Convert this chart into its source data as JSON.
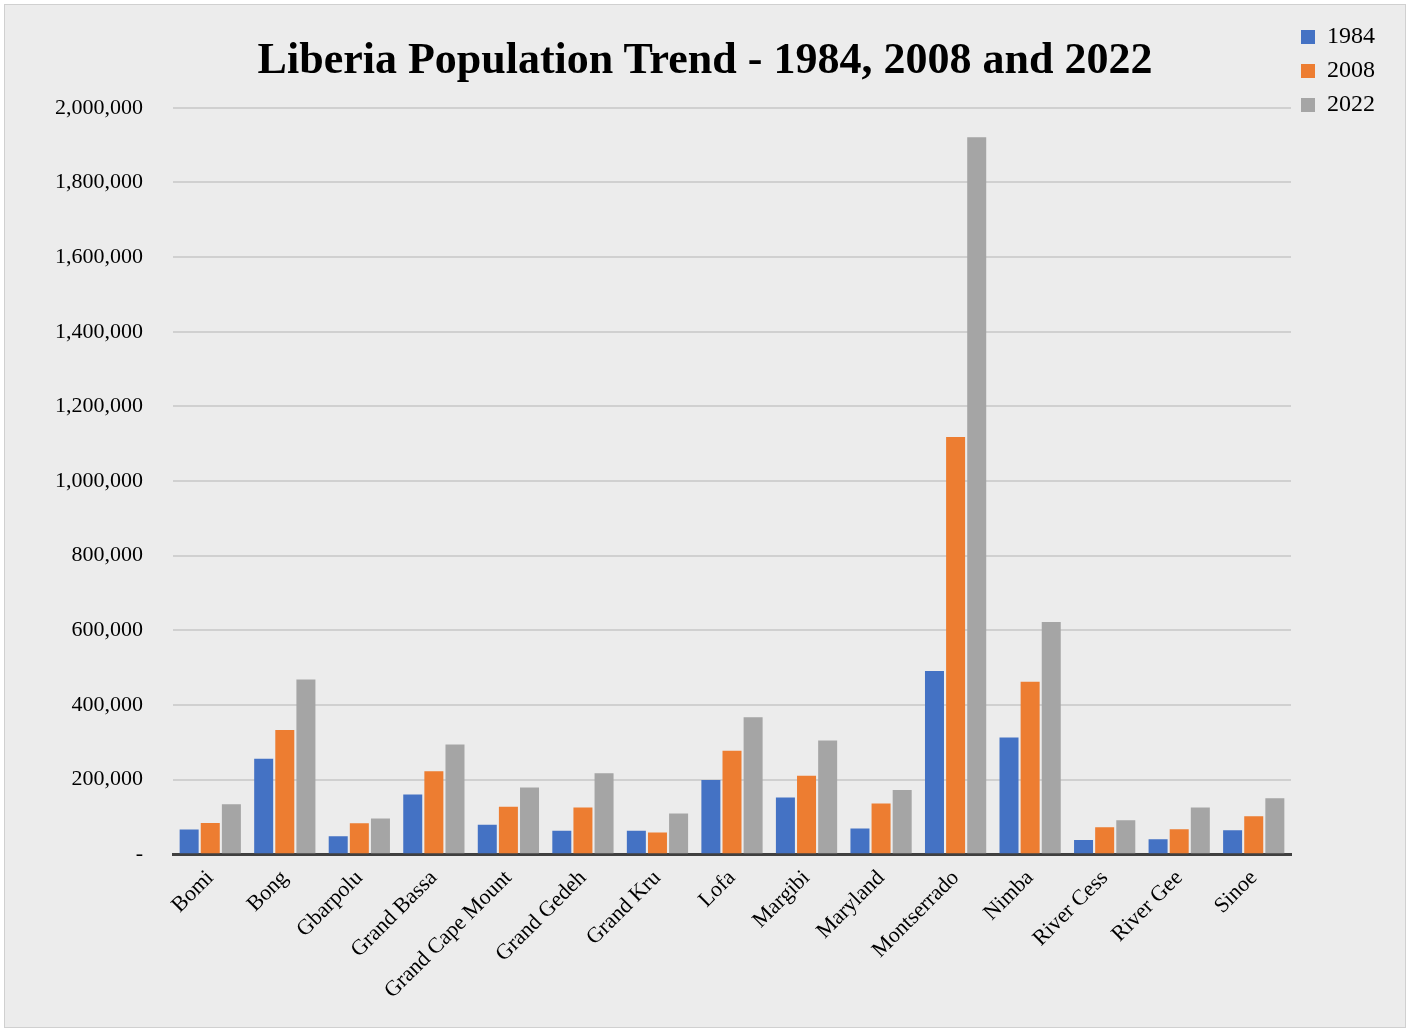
{
  "chart_data": {
    "type": "bar",
    "title": "Liberia Population Trend - 1984, 2008 and 2022",
    "categories": [
      "Bomi",
      "Bong",
      "Gbarpolu",
      "Grand Bassa",
      "Grand Cape Mount",
      "Grand Gedeh",
      "Grand Kru",
      "Lofa",
      "Margibi",
      "Maryland",
      "Montserrado",
      "Nimba",
      "River Cess",
      "River Gee",
      "Sinoe"
    ],
    "series": [
      {
        "name": "1984",
        "color": "#4472c4",
        "values": [
          66000,
          256000,
          48000,
          160000,
          79000,
          63000,
          63000,
          199000,
          152000,
          69000,
          491000,
          313000,
          38000,
          40000,
          64000
        ]
      },
      {
        "name": "2008",
        "color": "#ed7d31",
        "values": [
          84000,
          333000,
          83000,
          222000,
          127000,
          125000,
          58000,
          277000,
          210000,
          136000,
          1118000,
          462000,
          72000,
          67000,
          102000
        ]
      },
      {
        "name": "2022",
        "color": "#a5a5a5",
        "values": [
          134000,
          468000,
          96000,
          294000,
          179000,
          217000,
          109000,
          367000,
          305000,
          172000,
          1921000,
          622000,
          91000,
          125000,
          150000
        ]
      }
    ],
    "ylim": [
      0,
      2000000
    ],
    "yticks": [
      {
        "value": 0,
        "label": "-"
      },
      {
        "value": 200000,
        "label": "200,000"
      },
      {
        "value": 400000,
        "label": "400,000"
      },
      {
        "value": 600000,
        "label": "600,000"
      },
      {
        "value": 800000,
        "label": "800,000"
      },
      {
        "value": 1000000,
        "label": "1,000,000"
      },
      {
        "value": 1200000,
        "label": "1,200,000"
      },
      {
        "value": 1400000,
        "label": "1,400,000"
      },
      {
        "value": 1600000,
        "label": "1,600,000"
      },
      {
        "value": 1800000,
        "label": "1,800,000"
      },
      {
        "value": 2000000,
        "label": "2,000,000"
      }
    ],
    "grid": "y",
    "legend": "top right"
  }
}
